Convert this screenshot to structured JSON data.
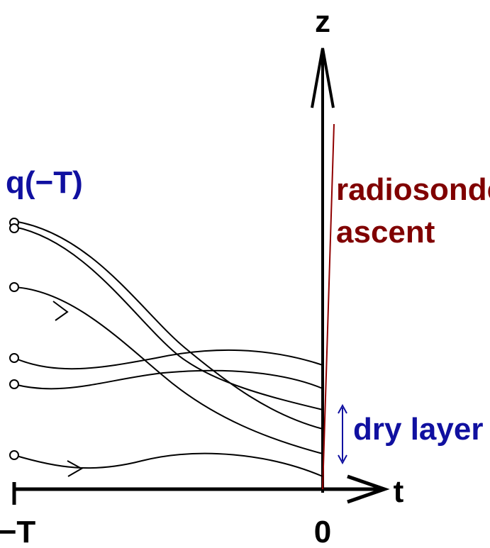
{
  "axes": {
    "vertical_label": "z",
    "horizontal_label": "t",
    "start_label": "−T",
    "origin_label": "0"
  },
  "initial_label": "q(−T)",
  "radiosonde_label": [
    "radiosonde",
    "ascent"
  ],
  "dry_layer_label": "dry layer"
}
